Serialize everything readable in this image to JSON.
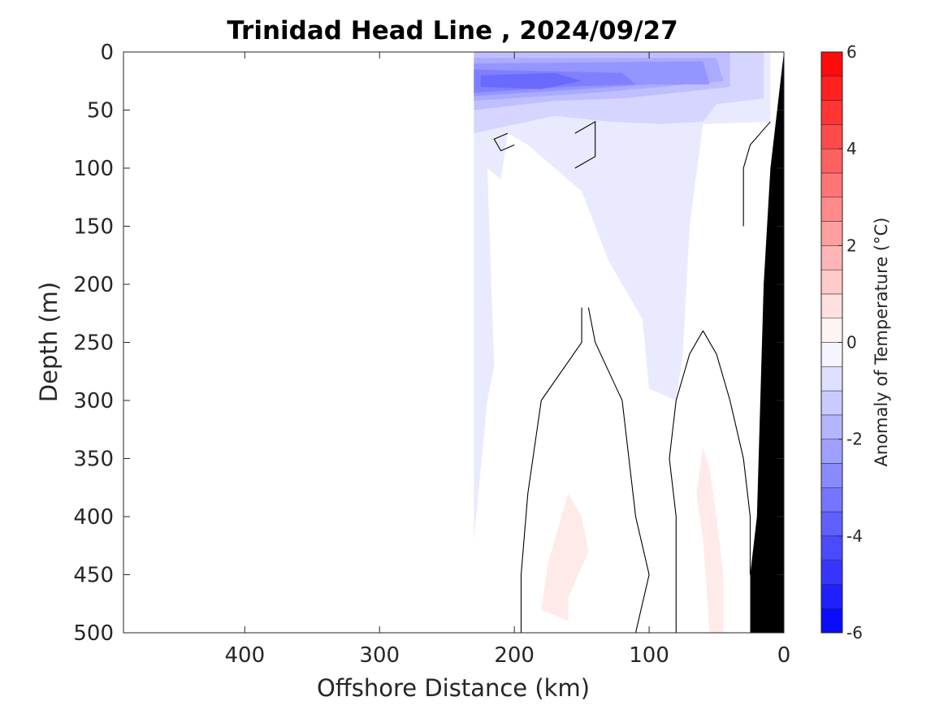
{
  "chart_data": {
    "type": "heatmap",
    "subtype": "filled-contour section",
    "title": "Trinidad Head Line , 2024/09/27",
    "xlabel": "Offshore Distance (km)",
    "ylabel": "Depth (m)",
    "xlim": [
      490,
      0
    ],
    "ylim": [
      0,
      500
    ],
    "x_reversed": true,
    "y_reversed": true,
    "x_ticks": [
      400,
      300,
      200,
      100,
      0
    ],
    "y_ticks": [
      0,
      50,
      100,
      150,
      200,
      250,
      300,
      350,
      400,
      450,
      500
    ],
    "colorbar": {
      "label": "Anomaly of Temperature (°C)",
      "range": [
        -6,
        6
      ],
      "step": 0.5,
      "ticks": [
        6,
        4,
        2,
        0,
        -2,
        -4,
        -6
      ],
      "tick_labels": [
        "6",
        "4",
        "2",
        "0",
        "-2",
        "-4",
        "-6"
      ],
      "negative_color": "#0000ff",
      "positive_color": "#ff0000",
      "zero_color": "#ffffff"
    },
    "data_extent_offshore_km": [
      230,
      0
    ],
    "regions": [
      {
        "level": -0.5,
        "desc": "weak cold anomaly, broad",
        "polygon": [
          [
            230,
            0
          ],
          [
            10,
            0
          ],
          [
            10,
            60
          ],
          [
            60,
            62
          ],
          [
            70,
            150
          ],
          [
            75,
            260
          ],
          [
            80,
            300
          ],
          [
            100,
            290
          ],
          [
            105,
            230
          ],
          [
            130,
            180
          ],
          [
            150,
            120
          ],
          [
            170,
            100
          ],
          [
            190,
            80
          ],
          [
            205,
            70
          ],
          [
            210,
            110
          ],
          [
            220,
            100
          ],
          [
            215,
            270
          ],
          [
            220,
            300
          ],
          [
            230,
            420
          ]
        ]
      },
      {
        "level": -1.0,
        "polygon": [
          [
            230,
            0
          ],
          [
            15,
            0
          ],
          [
            15,
            40
          ],
          [
            50,
            45
          ],
          [
            60,
            60
          ],
          [
            90,
            62
          ],
          [
            130,
            60
          ],
          [
            170,
            55
          ],
          [
            230,
            70
          ]
        ]
      },
      {
        "level": -1.5,
        "polygon": [
          [
            230,
            0
          ],
          [
            40,
            0
          ],
          [
            40,
            30
          ],
          [
            80,
            35
          ],
          [
            120,
            40
          ],
          [
            170,
            42
          ],
          [
            230,
            50
          ]
        ]
      },
      {
        "level": -2.0,
        "polygon": [
          [
            230,
            5
          ],
          [
            50,
            5
          ],
          [
            45,
            25
          ],
          [
            90,
            30
          ],
          [
            140,
            35
          ],
          [
            230,
            42
          ]
        ]
      },
      {
        "level": -2.5,
        "polygon": [
          [
            230,
            10
          ],
          [
            60,
            8
          ],
          [
            55,
            28
          ],
          [
            100,
            28
          ],
          [
            150,
            32
          ],
          [
            230,
            38
          ]
        ]
      },
      {
        "level": -3.0,
        "polygon": [
          [
            230,
            15
          ],
          [
            120,
            18
          ],
          [
            110,
            28
          ],
          [
            160,
            30
          ],
          [
            230,
            35
          ]
        ]
      },
      {
        "level": -3.5,
        "polygon": [
          [
            225,
            20
          ],
          [
            170,
            18
          ],
          [
            150,
            25
          ],
          [
            180,
            32
          ],
          [
            225,
            30
          ]
        ]
      },
      {
        "level": 0.5,
        "desc": "weak warm anomaly",
        "polygon": [
          [
            160,
            380
          ],
          [
            150,
            400
          ],
          [
            145,
            430
          ],
          [
            160,
            470
          ],
          [
            160,
            490
          ],
          [
            180,
            480
          ],
          [
            175,
            440
          ],
          [
            170,
            420
          ]
        ]
      },
      {
        "level": 0.5,
        "polygon": [
          [
            60,
            340
          ],
          [
            55,
            360
          ],
          [
            50,
            400
          ],
          [
            45,
            450
          ],
          [
            45,
            500
          ],
          [
            55,
            500
          ],
          [
            60,
            420
          ],
          [
            65,
            380
          ]
        ]
      }
    ],
    "zero_contours": [
      {
        "polyline": [
          [
            150,
            220
          ],
          [
            150,
            250
          ],
          [
            180,
            300
          ],
          [
            190,
            380
          ],
          [
            195,
            450
          ],
          [
            195,
            500
          ]
        ]
      },
      {
        "polyline": [
          [
            145,
            220
          ],
          [
            140,
            250
          ],
          [
            120,
            300
          ],
          [
            110,
            400
          ],
          [
            100,
            450
          ],
          [
            110,
            500
          ]
        ]
      },
      {
        "polyline": [
          [
            60,
            240
          ],
          [
            70,
            260
          ],
          [
            80,
            300
          ],
          [
            85,
            350
          ],
          [
            80,
            400
          ],
          [
            80,
            500
          ]
        ]
      },
      {
        "polyline": [
          [
            60,
            240
          ],
          [
            50,
            260
          ],
          [
            40,
            300
          ],
          [
            30,
            350
          ],
          [
            25,
            400
          ],
          [
            25,
            450
          ]
        ]
      },
      {
        "polyline": [
          [
            155,
            70
          ],
          [
            140,
            60
          ],
          [
            140,
            90
          ],
          [
            155,
            100
          ]
        ]
      },
      {
        "polyline": [
          [
            205,
            70
          ],
          [
            215,
            75
          ],
          [
            210,
            85
          ],
          [
            200,
            80
          ]
        ]
      },
      {
        "polyline": [
          [
            10,
            60
          ],
          [
            25,
            80
          ],
          [
            30,
            100
          ],
          [
            30,
            150
          ]
        ]
      }
    ],
    "bathymetry_polygon": [
      [
        0,
        0
      ],
      [
        0,
        500
      ],
      [
        25,
        500
      ],
      [
        25,
        450
      ],
      [
        20,
        400
      ],
      [
        15,
        200
      ],
      [
        10,
        100
      ]
    ]
  }
}
